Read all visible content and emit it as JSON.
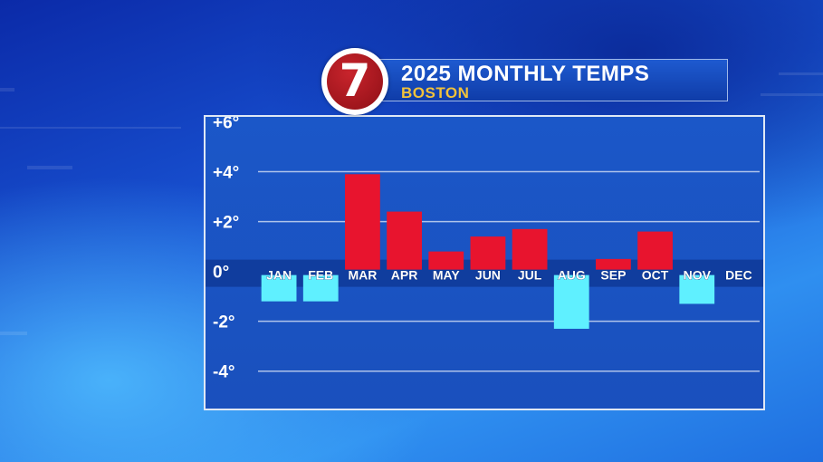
{
  "header": {
    "logo_text": "7",
    "title": "2025 MONTHLY TEMPS",
    "subtitle": "BOSTON"
  },
  "colors": {
    "positive": "#e8142e",
    "negative": "#5ff0ff",
    "title_accent": "#f2c23a"
  },
  "chart_data": {
    "type": "bar",
    "categories": [
      "JAN",
      "FEB",
      "MAR",
      "APR",
      "MAY",
      "JUN",
      "JUL",
      "AUG",
      "SEP",
      "OCT",
      "NOV",
      "DEC"
    ],
    "values": [
      -1.2,
      -1.2,
      3.9,
      2.4,
      0.8,
      1.4,
      1.7,
      -2.3,
      0.5,
      1.6,
      -1.3,
      null
    ],
    "yticks": [
      "+6°",
      "+4°",
      "+2°",
      "0°",
      "-2°",
      "-4°"
    ],
    "ytick_values": [
      6,
      4,
      2,
      0,
      -2,
      -4
    ],
    "ylim": [
      -5.5,
      6.2
    ],
    "title": "2025 MONTHLY TEMPS",
    "xlabel": "",
    "ylabel": "",
    "grid": true
  }
}
